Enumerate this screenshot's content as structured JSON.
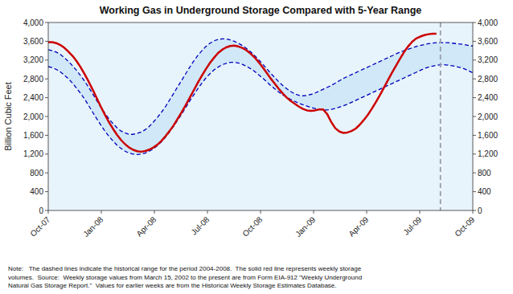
{
  "chart_data": {
    "type": "line",
    "title": "Working Gas in Underground Storage Compared with 5-Year Range",
    "y_label": "Billion Cubic Feet",
    "note": "Note:   The dashed lines indicate the historical range for the period 2004-2008.  The solid red line represents weekly storage\nvolumes.  Source:  Weekly storage values from March 15, 2002 to the present are from Form EIA-912 \"Weekly Underground\nNatural Gas Storage Report.\"  Values for earlier weeks are from the Historical Weekly Storage Estimates Database.",
    "grid": false,
    "plot_background": "#e8f4fc",
    "xlim": [
      0,
      105
    ],
    "xticks": [
      {
        "value": 0,
        "label": "Oct-07"
      },
      {
        "value": 13.125,
        "label": "Jan-08"
      },
      {
        "value": 26.25,
        "label": "Apr-08"
      },
      {
        "value": 39.375,
        "label": "Jul-08"
      },
      {
        "value": 52.5,
        "label": "Oct-08"
      },
      {
        "value": 65.625,
        "label": "Jan-09"
      },
      {
        "value": 78.75,
        "label": "Apr-09"
      },
      {
        "value": 91.875,
        "label": "Jul-09"
      },
      {
        "value": 105,
        "label": "Oct-09"
      }
    ],
    "ylim": [
      0,
      4000
    ],
    "yticks": [
      0,
      400,
      800,
      {
        "value": 1200,
        "label": "1,200"
      },
      {
        "value": 1600,
        "label": "1,600"
      },
      {
        "value": 2000,
        "label": "2,000"
      },
      {
        "value": 2400,
        "label": "2,400"
      },
      {
        "value": 2800,
        "label": "2,800"
      },
      {
        "value": 3200,
        "label": "3,200"
      },
      {
        "value": 3600,
        "label": "3,600"
      },
      {
        "value": 4000,
        "label": "4,000"
      }
    ],
    "y2lim": [
      0,
      4000
    ],
    "y2ticks": [
      0,
      400,
      800,
      {
        "value": 1200,
        "label": "1,200"
      },
      {
        "value": 1600,
        "label": "1,600"
      },
      {
        "value": 2000,
        "label": "2,000"
      },
      {
        "value": 2400,
        "label": "2,400"
      },
      {
        "value": 2800,
        "label": "2,800"
      },
      {
        "value": 3200,
        "label": "3,200"
      },
      {
        "value": 3600,
        "label": "3,600"
      },
      {
        "value": 4000,
        "label": "4,000"
      }
    ],
    "x": [
      0,
      1,
      2,
      3,
      4,
      5,
      6,
      7,
      8,
      9,
      10,
      11,
      12,
      13,
      14,
      15,
      16,
      17,
      18,
      19,
      20,
      21,
      22,
      23,
      24,
      25,
      26,
      27,
      28,
      29,
      30,
      31,
      32,
      33,
      34,
      35,
      36,
      37,
      38,
      39,
      40,
      41,
      42,
      43,
      44,
      45,
      46,
      47,
      48,
      49,
      50,
      51,
      52,
      53,
      54,
      55,
      56,
      57,
      58,
      59,
      60,
      61,
      62,
      63,
      64,
      65,
      66,
      67,
      68,
      69,
      70,
      71,
      72,
      73,
      74,
      75,
      76,
      77,
      78,
      79,
      80,
      81,
      82,
      83,
      84,
      85,
      86,
      87,
      88,
      89,
      90,
      91,
      92,
      93,
      94,
      95,
      96,
      97,
      98,
      99,
      100,
      101,
      102,
      103,
      104,
      105
    ],
    "series": [
      {
        "type": "range",
        "color": "#0000bb",
        "line_style": "dashed",
        "fill_color": "#d0e8f8",
        "upper": [
          3420,
          3400,
          3370,
          3320,
          3250,
          3170,
          3080,
          2980,
          2870,
          2750,
          2620,
          2480,
          2340,
          2200,
          2070,
          1950,
          1850,
          1760,
          1690,
          1650,
          1620,
          1620,
          1640,
          1670,
          1720,
          1790,
          1880,
          1980,
          2090,
          2210,
          2350,
          2490,
          2630,
          2770,
          2910,
          3050,
          3180,
          3300,
          3400,
          3490,
          3560,
          3610,
          3640,
          3650,
          3650,
          3630,
          3600,
          3560,
          3510,
          3450,
          3380,
          3300,
          3210,
          3120,
          3020,
          2920,
          2830,
          2740,
          2660,
          2590,
          2530,
          2480,
          2450,
          2440,
          2450,
          2470,
          2500,
          2540,
          2580,
          2620,
          2660,
          2710,
          2760,
          2810,
          2850,
          2890,
          2930,
          2970,
          3010,
          3050,
          3090,
          3130,
          3170,
          3210,
          3250,
          3290,
          3330,
          3370,
          3400,
          3430,
          3460,
          3490,
          3510,
          3530,
          3550,
          3560,
          3570,
          3570,
          3570,
          3570,
          3560,
          3550,
          3540,
          3530,
          3510,
          3500
        ],
        "lower": [
          3060,
          3040,
          3000,
          2950,
          2880,
          2800,
          2710,
          2600,
          2490,
          2370,
          2230,
          2090,
          1950,
          1820,
          1690,
          1580,
          1480,
          1390,
          1320,
          1260,
          1220,
          1200,
          1190,
          1200,
          1220,
          1260,
          1310,
          1380,
          1460,
          1560,
          1670,
          1790,
          1920,
          2050,
          2190,
          2330,
          2460,
          2590,
          2710,
          2820,
          2910,
          2990,
          3050,
          3100,
          3130,
          3150,
          3150,
          3140,
          3110,
          3070,
          3020,
          2960,
          2890,
          2820,
          2740,
          2660,
          2590,
          2520,
          2460,
          2410,
          2360,
          2320,
          2280,
          2250,
          2220,
          2190,
          2170,
          2150,
          2140,
          2140,
          2150,
          2170,
          2200,
          2230,
          2260,
          2300,
          2340,
          2380,
          2420,
          2460,
          2500,
          2540,
          2580,
          2620,
          2660,
          2700,
          2740,
          2780,
          2820,
          2860,
          2900,
          2940,
          2980,
          3020,
          3050,
          3070,
          3090,
          3100,
          3100,
          3090,
          3080,
          3060,
          3040,
          3010,
          2970,
          2930
        ]
      },
      {
        "type": "line",
        "color": "#cc0000",
        "line_style": "solid",
        "values": [
          3580,
          3580,
          3560,
          3520,
          3460,
          3380,
          3290,
          3180,
          3050,
          2900,
          2740,
          2570,
          2390,
          2210,
          2040,
          1880,
          1740,
          1610,
          1500,
          1410,
          1340,
          1290,
          1260,
          1250,
          1265,
          1295,
          1340,
          1400,
          1480,
          1580,
          1690,
          1810,
          1950,
          2090,
          2240,
          2400,
          2560,
          2720,
          2870,
          3010,
          3140,
          3250,
          3350,
          3420,
          3470,
          3500,
          3510,
          3490,
          3460,
          3410,
          3340,
          3260,
          3160,
          3050,
          2930,
          2810,
          2700,
          2590,
          2490,
          2400,
          2330,
          2270,
          2210,
          2160,
          2130,
          2120,
          2130,
          2150,
          2150,
          2050,
          1880,
          1750,
          1680,
          1650,
          1660,
          1690,
          1740,
          1820,
          1920,
          2030,
          2160,
          2300,
          2450,
          2610,
          2770,
          2930,
          3080,
          3230,
          3370,
          3490,
          3590,
          3660,
          3700,
          3730,
          3750,
          3760,
          3760,
          null,
          null,
          null,
          null,
          null,
          null,
          null,
          null,
          null
        ]
      }
    ],
    "reference_lines": [
      {
        "x": 97,
        "color": "#999aaa",
        "line_style": "dashed"
      }
    ]
  }
}
